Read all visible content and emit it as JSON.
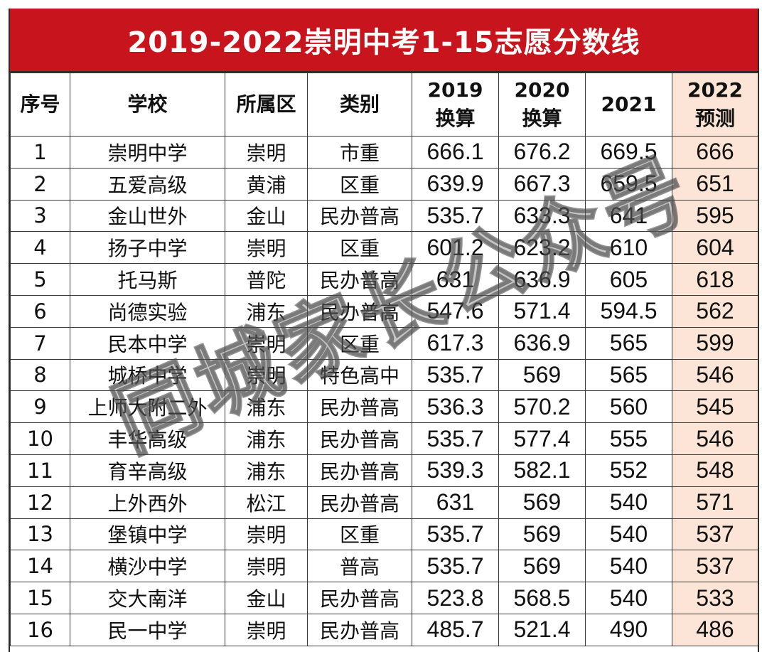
{
  "title": "2019-2022崇明中考1-15志愿分数线",
  "headers": {
    "index": "序号",
    "school": "学校",
    "district": "所属区",
    "category": "类别",
    "y2019": {
      "year": "2019",
      "sub": "换算"
    },
    "y2020": {
      "year": "2020",
      "sub": "换算"
    },
    "y2021": "2021",
    "y2022": {
      "year": "2022",
      "sub": "预测"
    }
  },
  "rows": [
    {
      "index": "1",
      "school": "崇明中学",
      "district": "崇明",
      "category": "市重",
      "y2019": "666.1",
      "y2020": "676.2",
      "y2021": "669.5",
      "y2022": "666"
    },
    {
      "index": "2",
      "school": "五爱高级",
      "district": "黄浦",
      "category": "区重",
      "y2019": "639.9",
      "y2020": "667.3",
      "y2021": "659.5",
      "y2022": "651"
    },
    {
      "index": "3",
      "school": "金山世外",
      "district": "金山",
      "category": "民办普高",
      "y2019": "535.7",
      "y2020": "633.3",
      "y2021": "641",
      "y2022": "595"
    },
    {
      "index": "4",
      "school": "扬子中学",
      "district": "崇明",
      "category": "区重",
      "y2019": "601.2",
      "y2020": "623.2",
      "y2021": "610",
      "y2022": "604"
    },
    {
      "index": "5",
      "school": "托马斯",
      "district": "普陀",
      "category": "民办普高",
      "y2019": "631",
      "y2020": "636.9",
      "y2021": "605",
      "y2022": "618"
    },
    {
      "index": "6",
      "school": "尚德实验",
      "district": "浦东",
      "category": "民办普高",
      "y2019": "547.6",
      "y2020": "571.4",
      "y2021": "594.5",
      "y2022": "562"
    },
    {
      "index": "7",
      "school": "民本中学",
      "district": "崇明",
      "category": "区重",
      "y2019": "617.3",
      "y2020": "636.9",
      "y2021": "565",
      "y2022": "599"
    },
    {
      "index": "8",
      "school": "城桥中学",
      "district": "崇明",
      "category": "特色高中",
      "y2019": "535.7",
      "y2020": "569",
      "y2021": "565",
      "y2022": "546"
    },
    {
      "index": "9",
      "school": "上师大附二外",
      "district": "浦东",
      "category": "民办普高",
      "y2019": "536.3",
      "y2020": "570.2",
      "y2021": "560",
      "y2022": "545"
    },
    {
      "index": "10",
      "school": "丰华高级",
      "district": "浦东",
      "category": "民办普高",
      "y2019": "535.7",
      "y2020": "577.4",
      "y2021": "555",
      "y2022": "546"
    },
    {
      "index": "11",
      "school": "育辛高级",
      "district": "浦东",
      "category": "民办普高",
      "y2019": "539.3",
      "y2020": "582.1",
      "y2021": "552",
      "y2022": "548"
    },
    {
      "index": "12",
      "school": "上外西外",
      "district": "松江",
      "category": "民办普高",
      "y2019": "631",
      "y2020": "569",
      "y2021": "540",
      "y2022": "571"
    },
    {
      "index": "13",
      "school": "堡镇中学",
      "district": "崇明",
      "category": "区重",
      "y2019": "535.7",
      "y2020": "569",
      "y2021": "540",
      "y2022": "537"
    },
    {
      "index": "14",
      "school": "横沙中学",
      "district": "崇明",
      "category": "普高",
      "y2019": "535.7",
      "y2020": "569",
      "y2021": "540",
      "y2022": "537"
    },
    {
      "index": "15",
      "school": "交大南洋",
      "district": "金山",
      "category": "民办普高",
      "y2019": "523.8",
      "y2020": "568.5",
      "y2021": "540",
      "y2022": "533"
    },
    {
      "index": "16",
      "school": "民一中学",
      "district": "崇明",
      "category": "民办普高",
      "y2019": "485.7",
      "y2020": "521.4",
      "y2021": "490",
      "y2022": "486"
    }
  ],
  "watermark": "同城家长公众号",
  "colors": {
    "title_bg": "#c8141c",
    "title_text": "#ffffff",
    "prediction_bg": "#fce4d6",
    "border": "#3a3a3a"
  }
}
